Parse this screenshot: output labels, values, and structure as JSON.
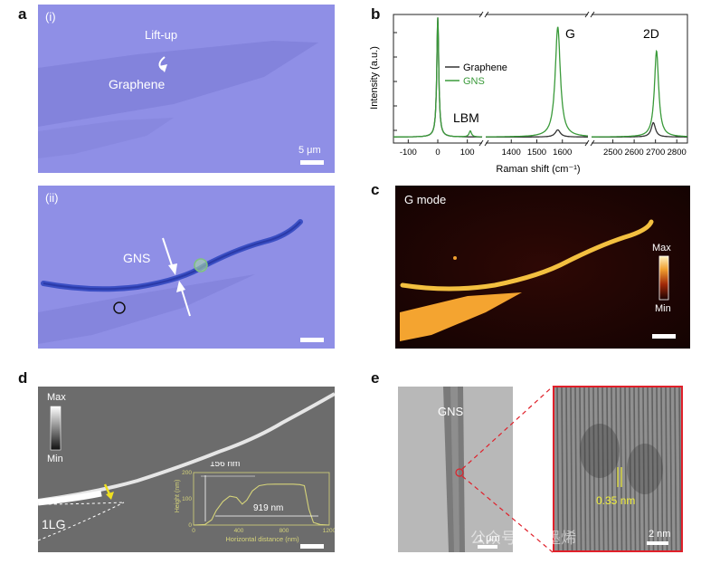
{
  "figure": {
    "panel_labels": [
      "a",
      "b",
      "c",
      "d",
      "e"
    ],
    "colors": {
      "optical_bg": "#8f8fe6",
      "graphene_ink": "#7f7fd9",
      "gns_blue": "#3b4fc4",
      "raman_graphene": "#333333",
      "raman_gns": "#3a9a3a",
      "afm_profile": "#d6d47a",
      "tem_zoom_border": "#e0202a",
      "lattice_label": "#f2f03a"
    }
  },
  "panel_a": {
    "sub_i": {
      "tag": "(i)",
      "annotation_liftup": "Lift-up",
      "annotation_graphene": "Graphene",
      "scale_bar_label": "5 μm"
    },
    "sub_ii": {
      "tag": "(ii)",
      "annotation_gns": "GNS"
    }
  },
  "panel_b": {
    "chart_data": {
      "type": "line",
      "xlabel": "Raman shift (cm⁻¹)",
      "ylabel": "Intensity (a.u.)",
      "x_segments": [
        {
          "range": [
            -150,
            150
          ],
          "ticks": [
            "-100",
            "0",
            "100"
          ]
        },
        {
          "range": [
            1300,
            1700
          ],
          "ticks": [
            "1400",
            "1500",
            "1600"
          ]
        },
        {
          "range": [
            2400,
            2850
          ],
          "ticks": [
            "2500",
            "2600",
            "2700",
            "2800"
          ]
        }
      ],
      "peak_labels": [
        "LBM",
        "G",
        "2D"
      ],
      "series": [
        {
          "name": "Graphene",
          "color": "#333333",
          "peaks": [
            {
              "x": 0,
              "height": 1.0
            },
            {
              "x": 1582,
              "height": 0.06
            },
            {
              "x": 2690,
              "height": 0.12
            }
          ]
        },
        {
          "name": "GNS",
          "color": "#3a9a3a",
          "peaks": [
            {
              "x": 0,
              "height": 1.0
            },
            {
              "x": 110,
              "height": 0.05
            },
            {
              "x": 1582,
              "height": 0.92
            },
            {
              "x": 2705,
              "height": 0.72
            }
          ]
        }
      ]
    }
  },
  "panel_c": {
    "label": "G mode",
    "colorbar_max": "Max",
    "colorbar_min": "Min"
  },
  "panel_d": {
    "colorbar_max": "Max",
    "colorbar_min": "Min",
    "region_label": "1LG",
    "inset": {
      "chart_data": {
        "type": "line",
        "xlabel": "Horizontal distance (nm)",
        "ylabel": "Height (nm)",
        "x_ticks": [
          "0",
          "400",
          "800",
          "1200"
        ],
        "y_ticks": [
          "0",
          "100",
          "200"
        ],
        "xlim": [
          0,
          1200
        ],
        "ylim": [
          0,
          200
        ],
        "height_annotation": "156 nm",
        "width_annotation": "919 nm",
        "x": [
          0,
          100,
          160,
          200,
          260,
          320,
          380,
          430,
          470,
          520,
          580,
          650,
          720,
          800,
          880,
          940,
          980,
          1020,
          1060,
          1120,
          1200
        ],
        "values": [
          0,
          2,
          20,
          55,
          90,
          110,
          105,
          80,
          95,
          130,
          150,
          155,
          156,
          156,
          156,
          154,
          150,
          60,
          10,
          2,
          0
        ]
      }
    }
  },
  "panel_e": {
    "label_gns": "GNS",
    "scale_bar_left": "1 μm",
    "lattice_spacing": "0.35 nm",
    "scale_bar_right": "2 nm",
    "watermark": "公众号 · 石墨烯"
  }
}
